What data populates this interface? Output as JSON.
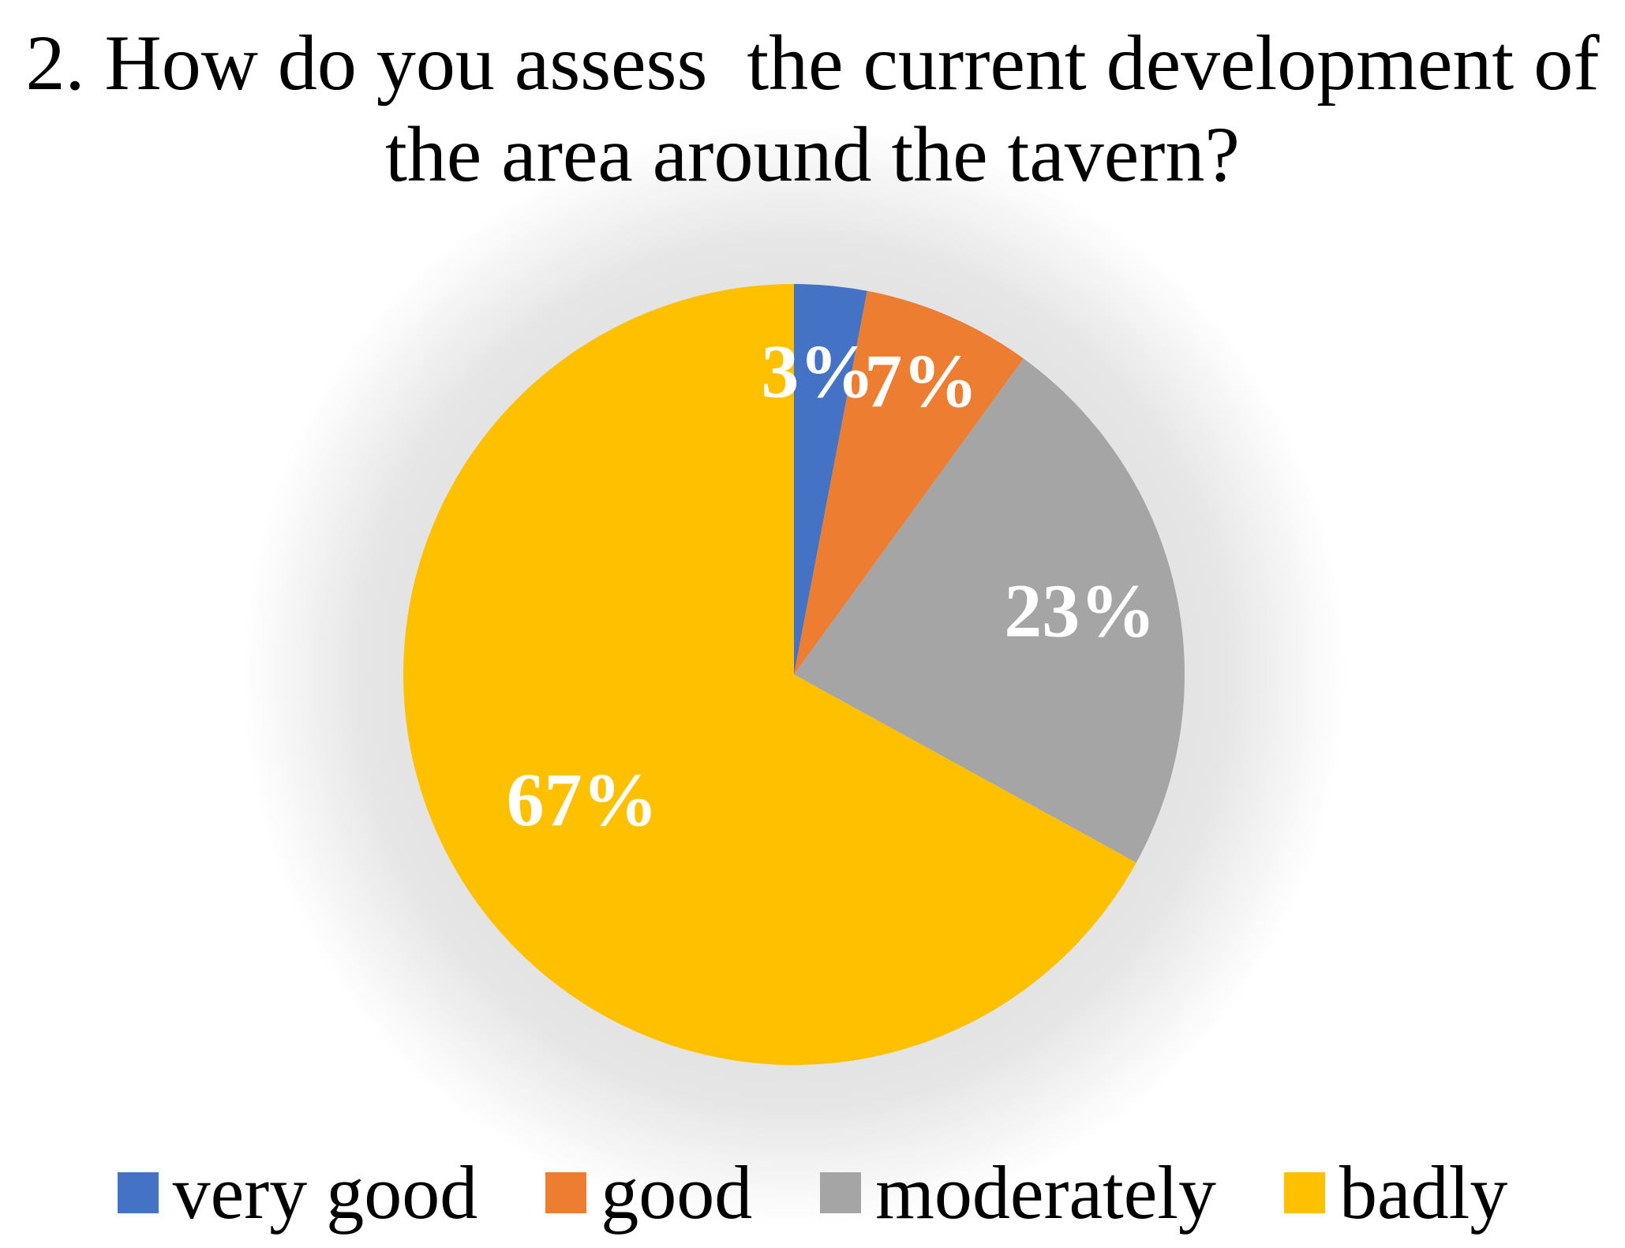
{
  "chart_data": {
    "type": "pie",
    "title_lines": [
      "2. How do you assess  the current development of",
      "the area around the tavern?"
    ],
    "categories": [
      "very good",
      "good",
      "moderately",
      "badly"
    ],
    "values": [
      3,
      7,
      23,
      67
    ],
    "data_labels": [
      "3%",
      "7%",
      "23%",
      "67%"
    ],
    "colors": [
      "#4472C4",
      "#ED7D31",
      "#A5A5A5",
      "#FFC000"
    ],
    "legend": "bottom",
    "start_angle": "12 o'clock",
    "direction": "clockwise"
  }
}
